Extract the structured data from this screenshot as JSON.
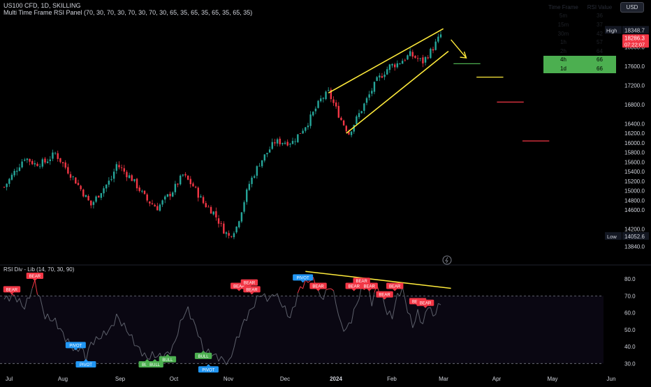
{
  "header": {
    "symbol_line": "US100 CFD, 1D, SKILLING",
    "indicator_line": "Multi Time Frame RSI Panel (70, 30, 70, 30, 70, 30, 70, 30, 65, 35, 65, 35, 65, 35, 65, 35)",
    "currency_button": "USD"
  },
  "rsi_panel": {
    "headers": [
      "Time Frame",
      "RSI Value"
    ],
    "rows": [
      {
        "tf": "5m",
        "value": "36",
        "highlight": false
      },
      {
        "tf": "15m",
        "value": "37",
        "highlight": false
      },
      {
        "tf": "30m",
        "value": "42",
        "highlight": false
      },
      {
        "tf": "1h",
        "value": "57",
        "highlight": false
      },
      {
        "tf": "2h",
        "value": "64",
        "highlight": false
      },
      {
        "tf": "4h",
        "value": "66",
        "highlight": true
      },
      {
        "tf": "1d",
        "value": "66",
        "highlight": true
      }
    ]
  },
  "chart_data": [
    {
      "type": "candlestick",
      "title": "US100 CFD, 1D, SKILLING",
      "ylim": [
        13600,
        18600
      ],
      "y_ticks": [
        13840,
        14200,
        14600,
        14800,
        15000,
        15200,
        15400,
        15600,
        15800,
        16000,
        16200,
        16400,
        16800,
        17200,
        17600,
        18000
      ],
      "x_labels": [
        "Jul",
        "Aug",
        "Sep",
        "Oct",
        "Nov",
        "Dec",
        "2024",
        "Feb",
        "Mar",
        "Apr",
        "May",
        "Jun"
      ],
      "candles_count": 172,
      "waypoints": [
        [
          0,
          15080
        ],
        [
          8,
          15700
        ],
        [
          12,
          15560
        ],
        [
          16,
          15600
        ],
        [
          20,
          15780
        ],
        [
          28,
          15200
        ],
        [
          34,
          14700
        ],
        [
          38,
          15000
        ],
        [
          42,
          15250
        ],
        [
          44,
          15550
        ],
        [
          50,
          15250
        ],
        [
          56,
          14800
        ],
        [
          60,
          14650
        ],
        [
          66,
          15000
        ],
        [
          70,
          15330
        ],
        [
          74,
          15100
        ],
        [
          78,
          14750
        ],
        [
          82,
          14550
        ],
        [
          86,
          14180
        ],
        [
          88,
          14050
        ],
        [
          91,
          14250
        ],
        [
          96,
          15150
        ],
        [
          100,
          15580
        ],
        [
          106,
          16020
        ],
        [
          113,
          16020
        ],
        [
          119,
          16430
        ],
        [
          124,
          16900
        ],
        [
          127,
          17050
        ],
        [
          132,
          16480
        ],
        [
          135,
          16200
        ],
        [
          140,
          16700
        ],
        [
          146,
          17300
        ],
        [
          151,
          17600
        ],
        [
          154,
          17650
        ],
        [
          159,
          17840
        ],
        [
          164,
          17690
        ],
        [
          168,
          17980
        ],
        [
          171,
          18250
        ]
      ],
      "price_labels": {
        "high_label": "High",
        "high_value": "18348.7",
        "last_value": "18286.3",
        "countdown": "07:22:07",
        "low_label": "Low",
        "low_value": "14052.6"
      },
      "annotations": {
        "channel_upper": [
          [
            127,
            17040
          ],
          [
            172,
            18380
          ]
        ],
        "channel_lower": [
          [
            134,
            16200
          ],
          [
            174,
            17910
          ]
        ],
        "arrow": [
          [
            175,
            18150
          ],
          [
            181,
            17770
          ]
        ],
        "target_levels": [
          {
            "value": 17650,
            "color": "#4caf50"
          },
          {
            "value": 17370,
            "color": "#ffeb3b"
          },
          {
            "value": 16850,
            "color": "#f23645"
          },
          {
            "value": 16040,
            "color": "#f23645"
          }
        ]
      }
    },
    {
      "type": "line",
      "title": "RSI Div - Lib (14, 70, 30, 90)",
      "ylim": [
        26,
        85
      ],
      "y_ticks": [
        30.0,
        40.0,
        50.0,
        60.0,
        70.0,
        80.0
      ],
      "levels": [
        30,
        70
      ],
      "x_labels": [
        "Jul",
        "Aug",
        "Sep",
        "Oct",
        "Nov",
        "Dec",
        "2024",
        "Feb",
        "Mar",
        "Apr",
        "May",
        "Jun"
      ],
      "rsi_waypoints": [
        [
          0,
          68
        ],
        [
          4,
          70
        ],
        [
          8,
          63
        ],
        [
          12,
          78
        ],
        [
          16,
          58
        ],
        [
          20,
          55
        ],
        [
          24,
          45
        ],
        [
          28,
          37
        ],
        [
          30,
          40
        ],
        [
          32,
          33
        ],
        [
          34,
          42
        ],
        [
          38,
          46
        ],
        [
          42,
          51
        ],
        [
          44,
          58
        ],
        [
          48,
          50
        ],
        [
          52,
          40
        ],
        [
          56,
          33
        ],
        [
          58,
          35
        ],
        [
          62,
          34
        ],
        [
          64,
          36
        ],
        [
          66,
          39
        ],
        [
          70,
          58
        ],
        [
          72,
          62
        ],
        [
          76,
          48
        ],
        [
          78,
          38
        ],
        [
          82,
          35
        ],
        [
          86,
          32
        ],
        [
          88,
          30
        ],
        [
          90,
          40
        ],
        [
          94,
          55
        ],
        [
          98,
          65
        ],
        [
          100,
          71
        ],
        [
          104,
          68
        ],
        [
          106,
          72
        ],
        [
          110,
          62
        ],
        [
          112,
          57
        ],
        [
          116,
          75
        ],
        [
          120,
          80
        ],
        [
          122,
          78
        ],
        [
          124,
          68
        ],
        [
          128,
          76
        ],
        [
          130,
          66
        ],
        [
          132,
          52
        ],
        [
          134,
          50
        ],
        [
          136,
          56
        ],
        [
          140,
          74
        ],
        [
          142,
          76
        ],
        [
          144,
          66
        ],
        [
          146,
          76
        ],
        [
          148,
          70
        ],
        [
          150,
          60
        ],
        [
          152,
          58
        ],
        [
          154,
          70
        ],
        [
          156,
          74
        ],
        [
          158,
          62
        ],
        [
          160,
          52
        ],
        [
          162,
          60
        ],
        [
          164,
          53
        ],
        [
          166,
          65
        ],
        [
          168,
          58
        ],
        [
          171,
          66
        ]
      ],
      "trendline": [
        [
          118,
          84.5
        ],
        [
          175,
          74.5
        ]
      ],
      "signals": [
        {
          "label": "BEAR",
          "type": "bear",
          "x": 3,
          "y": 70,
          "above": true
        },
        {
          "label": "BEAR",
          "type": "bear",
          "x": 12,
          "y": 78,
          "above": true
        },
        {
          "label": "PIVOT",
          "type": "pivot",
          "x": 28,
          "y": 37,
          "above": true
        },
        {
          "label": "PIVOT",
          "type": "pivot",
          "x": 32,
          "y": 33,
          "above": false
        },
        {
          "label": "BULL",
          "type": "bull",
          "x": 56,
          "y": 33,
          "above": false
        },
        {
          "label": "BULL",
          "type": "bull",
          "x": 59,
          "y": 33,
          "above": false
        },
        {
          "label": "BULL",
          "type": "bull",
          "x": 64,
          "y": 36,
          "above": false
        },
        {
          "label": "BULL",
          "type": "bull",
          "x": 78,
          "y": 38,
          "above": false
        },
        {
          "label": "PIVOT",
          "type": "pivot",
          "x": 80,
          "y": 30,
          "above": false
        },
        {
          "label": "BEAR",
          "type": "bear",
          "x": 92,
          "y": 72,
          "above": true
        },
        {
          "label": "BEAR",
          "type": "bear",
          "x": 96,
          "y": 74,
          "above": true
        },
        {
          "label": "BEAR",
          "type": "bear",
          "x": 97,
          "y": 70,
          "above": true
        },
        {
          "label": "PIVOT",
          "type": "pivot",
          "x": 117,
          "y": 77,
          "above": true
        },
        {
          "label": "BEAR",
          "type": "bear",
          "x": 123,
          "y": 72,
          "above": true
        },
        {
          "label": "BEAR",
          "type": "bear",
          "x": 137,
          "y": 72,
          "above": true
        },
        {
          "label": "BEAR",
          "type": "bear",
          "x": 140,
          "y": 75,
          "above": true
        },
        {
          "label": "BEAR",
          "type": "bear",
          "x": 143,
          "y": 72,
          "above": true
        },
        {
          "label": "BEAR",
          "type": "bear",
          "x": 149,
          "y": 67,
          "above": true
        },
        {
          "label": "BEAR",
          "type": "bear",
          "x": 153,
          "y": 72,
          "above": true
        },
        {
          "label": "BEAR",
          "type": "bear",
          "x": 162,
          "y": 63,
          "above": true
        },
        {
          "label": "BEAR",
          "type": "bear",
          "x": 165,
          "y": 62,
          "above": true
        }
      ]
    }
  ],
  "colors": {
    "up": "#26a69a",
    "down": "#f23645",
    "trend": "#ffeb3b",
    "rsi_line": "#5d606b",
    "rsi_bear_line": "#f23645",
    "bear": "#f23645",
    "bull": "#4caf50",
    "pivot": "#2196f3",
    "axis_text": "#d1d4dc",
    "highlight": "#4caf50"
  }
}
